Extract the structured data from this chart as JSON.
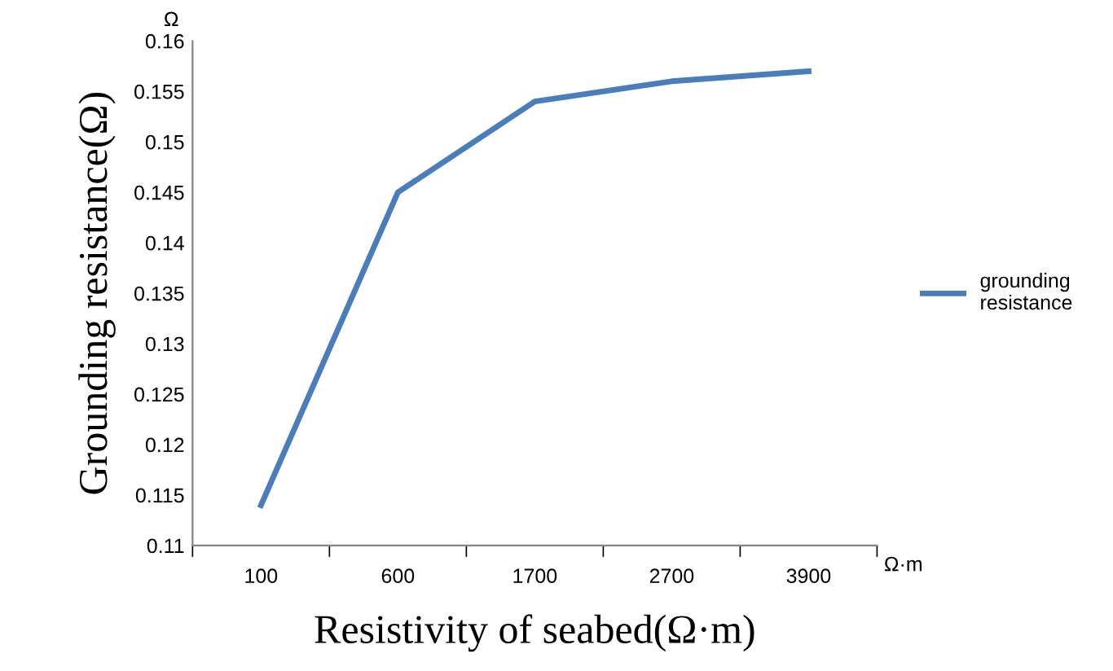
{
  "chart_data": {
    "type": "line",
    "xlabel": "Resistivity of seabed(Ω·m)",
    "ylabel": "Grounding resistance(Ω)",
    "categories": [
      "100",
      "600",
      "1700",
      "2700",
      "3900"
    ],
    "series": [
      {
        "name": "grounding resistance",
        "color": "#4a7ebb",
        "values": [
          0.114,
          0.145,
          0.154,
          0.156,
          0.157
        ]
      }
    ],
    "ylim": [
      0.11,
      0.16
    ],
    "yticks": [
      0.11,
      0.115,
      0.12,
      0.125,
      0.13,
      0.135,
      0.14,
      0.145,
      0.15,
      0.155,
      0.16
    ],
    "annotations": [
      "Ω",
      "Ω·m"
    ],
    "grid": false,
    "legend": "right",
    "marker": "none",
    "line_style": "solid"
  }
}
